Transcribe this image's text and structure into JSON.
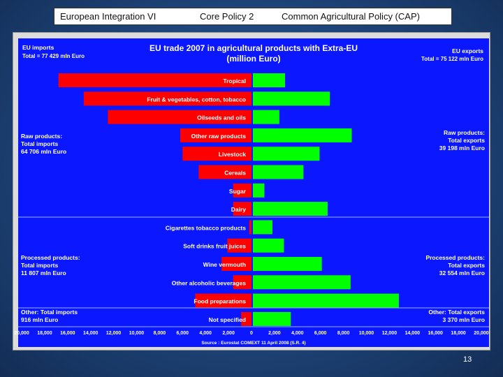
{
  "header": {
    "course": "European Integration VI",
    "topic": "Core Policy 2",
    "subject": "Common Agricultural Policy (CAP)"
  },
  "page_number": "13",
  "chart_data": {
    "type": "bar",
    "orientation": "horizontal-diverging",
    "title": "EU trade 2007 in agricultural products with Extra-EU",
    "subtitle": "(million Euro)",
    "source": "Source : Eurostat COMEXT 11 April 2008 (S.R. 4)",
    "left_header": {
      "line1": "EU imports",
      "line2": "Total = 77 429 mln Euro"
    },
    "right_header": {
      "line1": "EU exports",
      "line2": "Total = 75 122 mln Euro"
    },
    "categories": [
      "Tropical",
      "Fruit & vegetables, cotton, tobacco",
      "Oilseeds and oils",
      "Other raw products",
      "Livestock",
      "Cereals",
      "Sugar",
      "Dairy",
      "Cigarettes tobacco products",
      "Soft drinks fruit juices",
      "Wine vermouth",
      "Other alcoholic beverages",
      "Food preparations",
      "Not specified"
    ],
    "series": [
      {
        "name": "EU imports",
        "color": "#ff0000",
        "values": [
          16800,
          14600,
          12500,
          6200,
          6000,
          4600,
          1600,
          1600,
          200,
          2100,
          2600,
          1600,
          4900,
          900
        ]
      },
      {
        "name": "EU exports",
        "color": "#00ff00",
        "values": [
          2800,
          6700,
          2300,
          8600,
          5800,
          4400,
          1000,
          6500,
          1700,
          2700,
          6000,
          8500,
          12700,
          3300
        ]
      }
    ],
    "group_labels": [
      {
        "side": "left",
        "lines": [
          "Raw products:",
          "Total imports",
          "64 706 mln Euro"
        ]
      },
      {
        "side": "right",
        "lines": [
          "Raw products:",
          "Total exports",
          "39 198 mln Euro"
        ]
      },
      {
        "side": "left",
        "lines": [
          "Processed products:",
          "Total imports",
          "11 807 mln Euro"
        ]
      },
      {
        "side": "right",
        "lines": [
          "Processed products:",
          "Total exports",
          "32 554 mln Euro"
        ]
      },
      {
        "side": "left",
        "lines": [
          "Other: Total imports",
          "916 mln Euro"
        ]
      },
      {
        "side": "right",
        "lines": [
          "Other: Total exports",
          "3 370 mln Euro"
        ]
      }
    ],
    "x_tick_values": [
      -20000,
      -18000,
      -16000,
      -14000,
      -12000,
      -10000,
      -8000,
      -6000,
      -4000,
      -2000,
      0,
      2000,
      4000,
      6000,
      8000,
      10000,
      12000,
      14000,
      16000,
      18000,
      20000
    ],
    "x_tick_labels": [
      "20,000",
      "18,000",
      "16,000",
      "14,000",
      "12,000",
      "10,000",
      "8,000",
      "6,000",
      "4,000",
      "2,000",
      "0",
      "2,000",
      "4,000",
      "6,000",
      "8,000",
      "10,000",
      "12,000",
      "14,000",
      "16,000",
      "18,000",
      "20,000"
    ],
    "xlim": [
      -20000,
      20000
    ],
    "grid": false
  }
}
